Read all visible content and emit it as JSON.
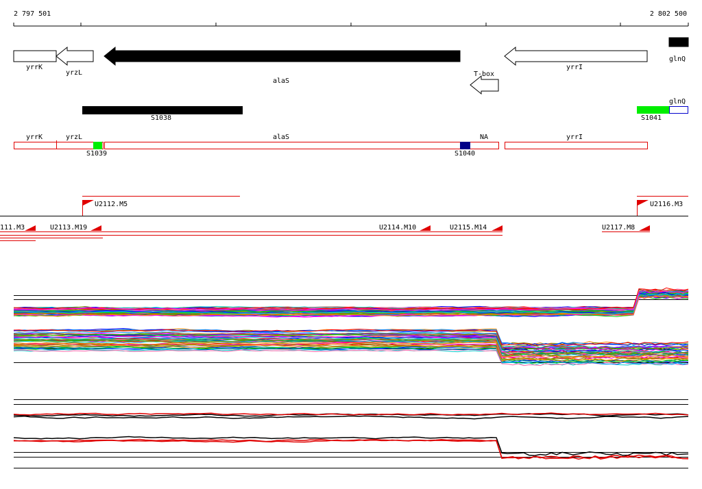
{
  "ruler": {
    "start": "2 797 501",
    "end": "2 802 500"
  },
  "genes": [
    {
      "label": "yrrK"
    },
    {
      "label": "yrzL"
    },
    {
      "label": "alaS"
    },
    {
      "label": "T-box"
    },
    {
      "label": "yrrI"
    },
    {
      "label": "glnQ"
    }
  ],
  "segments": [
    {
      "label": "S1038"
    },
    {
      "label": "glnQ"
    },
    {
      "label": "S1041"
    }
  ],
  "annotation": [
    {
      "label": "yrrK"
    },
    {
      "label": "yrzL"
    },
    {
      "label": "alaS"
    },
    {
      "label": "NA"
    },
    {
      "label": "yrrI"
    },
    {
      "label": "S1039"
    },
    {
      "label": "S1040"
    }
  ],
  "units": [
    {
      "label": "U2112.M5"
    },
    {
      "label": "U2116.M3"
    },
    {
      "label": "111.M3"
    },
    {
      "label": "U2113.M19"
    },
    {
      "label": "U2114.M10"
    },
    {
      "label": "U2115.M14"
    },
    {
      "label": "U2117.M8"
    }
  ]
}
